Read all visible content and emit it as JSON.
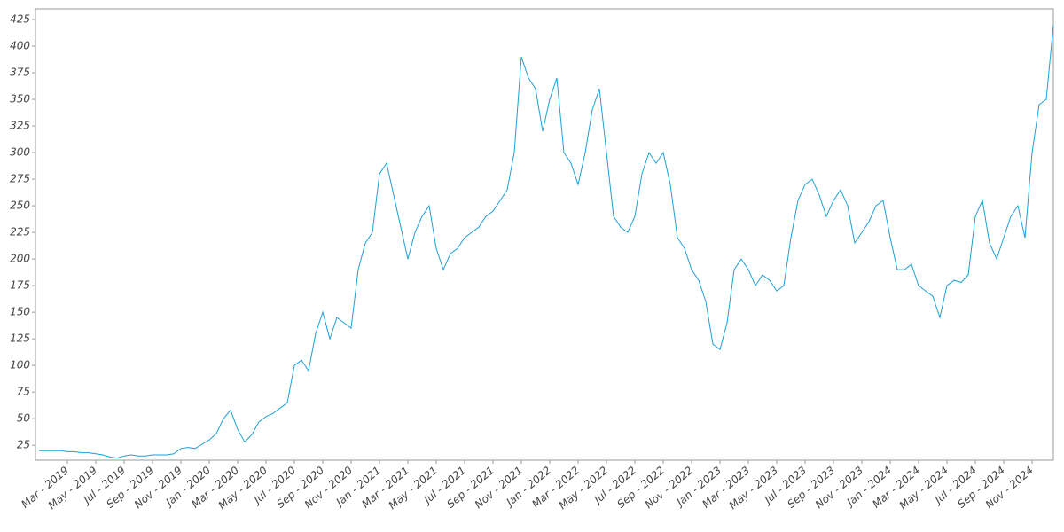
{
  "chart_data": {
    "type": "line",
    "color": "#1e9fd6",
    "grid": false,
    "x": [
      null,
      null,
      null,
      null,
      "Mar - 2019",
      null,
      null,
      null,
      "May - 2019",
      null,
      null,
      null,
      "Jul - 2019",
      null,
      null,
      null,
      "Sep - 2019",
      null,
      null,
      null,
      "Nov - 2019",
      null,
      null,
      null,
      "Jan - 2020",
      null,
      null,
      null,
      "Mar - 2020",
      null,
      null,
      null,
      "May - 2020",
      null,
      null,
      null,
      "Jul - 2020",
      null,
      null,
      null,
      "Sep - 2020",
      null,
      null,
      null,
      "Nov - 2020",
      null,
      null,
      null,
      "Jan - 2021",
      null,
      null,
      null,
      "Mar - 2021",
      null,
      null,
      null,
      "May - 2021",
      null,
      null,
      null,
      "Jul - 2021",
      null,
      null,
      null,
      "Sep - 2021",
      null,
      null,
      null,
      "Nov - 2021",
      null,
      null,
      null,
      "Jan - 2022",
      null,
      null,
      null,
      "Mar - 2022",
      null,
      null,
      null,
      "May - 2022",
      null,
      null,
      null,
      "Jul - 2022",
      null,
      null,
      null,
      "Sep - 2022",
      null,
      null,
      null,
      "Nov - 2022",
      null,
      null,
      null,
      "Jan - 2023",
      null,
      null,
      null,
      "Mar - 2023",
      null,
      null,
      null,
      "May - 2023",
      null,
      null,
      null,
      "Jul - 2023",
      null,
      null,
      null,
      "Sep - 2023",
      null,
      null,
      null,
      "Nov - 2023",
      null,
      null,
      null,
      "Jan - 2024",
      null,
      null,
      null,
      "Mar - 2024",
      null,
      null,
      null,
      "May - 2024",
      null,
      null,
      null,
      "Jul - 2024",
      null,
      null,
      null,
      "Sep - 2024",
      null,
      null,
      null,
      "Nov - 2024",
      null,
      null,
      null
    ],
    "values": [
      20,
      20,
      20,
      20,
      19,
      19,
      18,
      18,
      17,
      16,
      14,
      13,
      15,
      16,
      15,
      15,
      16,
      16,
      16,
      17,
      22,
      23,
      22,
      26,
      30,
      36,
      50,
      58,
      40,
      28,
      35,
      47,
      52,
      55,
      60,
      65,
      100,
      105,
      95,
      130,
      150,
      125,
      145,
      140,
      135,
      190,
      215,
      225,
      280,
      290,
      260,
      230,
      200,
      225,
      240,
      250,
      210,
      190,
      205,
      210,
      220,
      225,
      230,
      240,
      245,
      255,
      265,
      300,
      390,
      370,
      360,
      320,
      350,
      370,
      300,
      290,
      270,
      300,
      340,
      360,
      300,
      240,
      230,
      225,
      240,
      280,
      300,
      290,
      300,
      270,
      220,
      210,
      190,
      180,
      160,
      120,
      115,
      140,
      190,
      200,
      190,
      175,
      185,
      180,
      170,
      175,
      220,
      255,
      270,
      275,
      260,
      240,
      255,
      265,
      250,
      215,
      225,
      235,
      250,
      255,
      220,
      190,
      190,
      195,
      175,
      170,
      165,
      145,
      175,
      180,
      178,
      185,
      240,
      255,
      215,
      200,
      220,
      240,
      250,
      220,
      300,
      345,
      350,
      420
    ],
    "ylim": [
      11,
      435
    ],
    "yticks": [
      25,
      50,
      75,
      100,
      125,
      150,
      175,
      200,
      225,
      250,
      275,
      300,
      325,
      350,
      375,
      400,
      425
    ]
  }
}
